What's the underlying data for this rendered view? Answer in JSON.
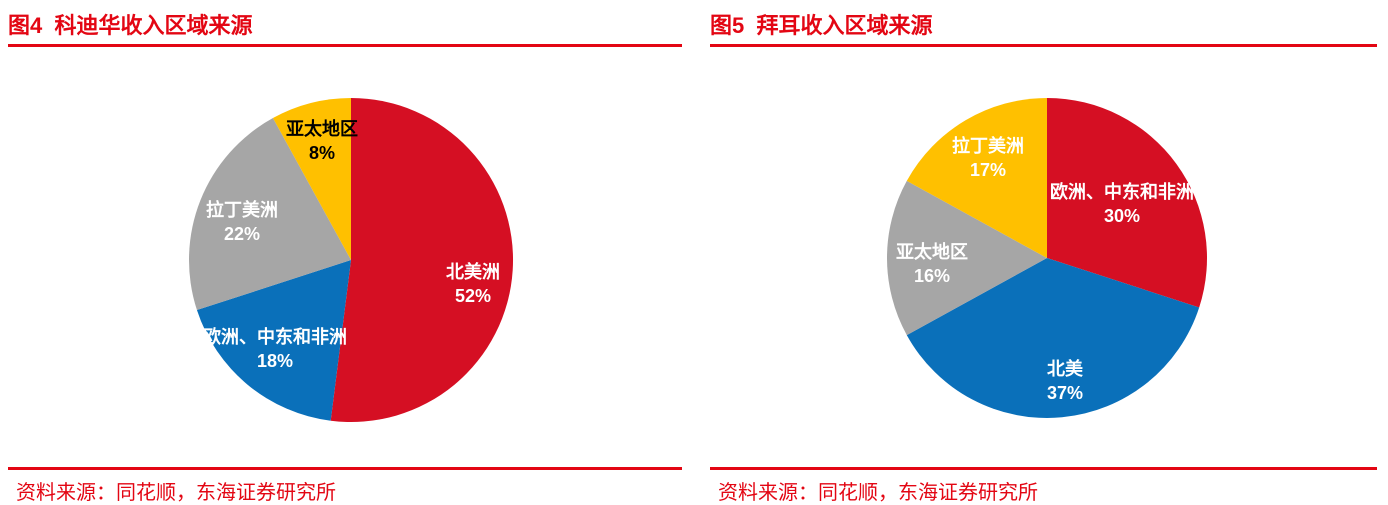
{
  "accent_color": "#e30613",
  "figures": [
    {
      "title": "图4  科迪华收入区域来源",
      "source": "资料来源：同花顺，东海证券研究所"
    },
    {
      "title": "图5  拜耳收入区域来源",
      "source": "资料来源：同花顺，东海证券研究所"
    }
  ],
  "chart_data": [
    {
      "type": "pie",
      "title": "图4 科迪华收入区域来源",
      "labels": [
        "北美洲",
        "欧洲、中东和非洲",
        "拉丁美洲",
        "亚太地区"
      ],
      "values": [
        52,
        18,
        22,
        8
      ],
      "unit": "%",
      "slice_colors": [
        "#d50f23",
        "#0a70ba",
        "#a6a6a6",
        "#ffc000"
      ],
      "label_text_colors": [
        "#ffffff",
        "#ffffff",
        "#ffffff",
        "#000000"
      ],
      "start_angle_deg": 0,
      "direction": "clockwise",
      "legend": "none",
      "data_labels": "name-and-percent-inside"
    },
    {
      "type": "pie",
      "title": "图5 拜耳收入区域来源",
      "labels": [
        "欧洲、中东和非洲",
        "北美",
        "亚太地区",
        "拉丁美洲"
      ],
      "values": [
        30,
        37,
        16,
        17
      ],
      "unit": "%",
      "slice_colors": [
        "#d50f23",
        "#0a70ba",
        "#a6a6a6",
        "#ffc000"
      ],
      "label_text_colors": [
        "#ffffff",
        "#ffffff",
        "#ffffff",
        "#ffffff"
      ],
      "start_angle_deg": 0,
      "direction": "clockwise",
      "legend": "none",
      "data_labels": "name-and-percent-inside"
    }
  ]
}
